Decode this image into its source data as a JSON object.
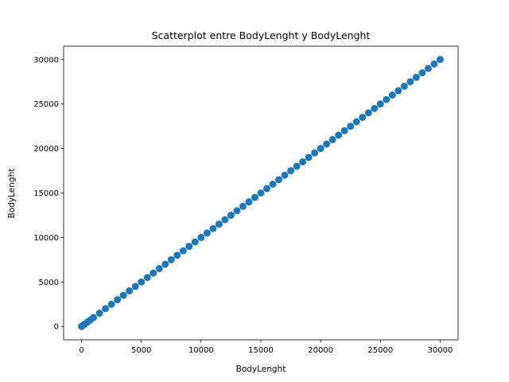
{
  "chart_data": {
    "type": "scatter",
    "title": "Scatterplot entre BodyLenght y BodyLenght",
    "xlabel": "BodyLenght",
    "ylabel": "BodyLenght",
    "xlim": [
      -1500,
      31500
    ],
    "ylim": [
      -1500,
      31500
    ],
    "xticks": [
      0,
      5000,
      10000,
      15000,
      20000,
      25000,
      30000
    ],
    "yticks": [
      0,
      5000,
      10000,
      15000,
      20000,
      25000,
      30000
    ],
    "xtick_labels": [
      "0",
      "5000",
      "10000",
      "15000",
      "20000",
      "25000",
      "30000"
    ],
    "ytick_labels": [
      "0",
      "5000",
      "10000",
      "15000",
      "20000",
      "25000",
      "30000"
    ],
    "grid": false,
    "marker_color": "#1f77b4",
    "series": [
      {
        "x": [
          0,
          100,
          250,
          500,
          750,
          1000,
          1500,
          2000,
          2500,
          3000,
          3500,
          4000,
          4500,
          5000,
          5500,
          6000,
          6500,
          7000,
          7500,
          8000,
          8500,
          9000,
          9500,
          10000,
          10500,
          11000,
          11500,
          12000,
          12500,
          13000,
          13500,
          14000,
          14500,
          15000,
          15500,
          16000,
          16500,
          17000,
          17500,
          18000,
          18500,
          19000,
          19500,
          20000,
          20500,
          21000,
          21500,
          22000,
          22500,
          23000,
          23500,
          24000,
          24500,
          25000,
          25500,
          26000,
          26500,
          27000,
          27500,
          28000,
          28500,
          29000,
          29500,
          30000
        ],
        "y": [
          0,
          100,
          250,
          500,
          750,
          1000,
          1500,
          2000,
          2500,
          3000,
          3500,
          4000,
          4500,
          5000,
          5500,
          6000,
          6500,
          7000,
          7500,
          8000,
          8500,
          9000,
          9500,
          10000,
          10500,
          11000,
          11500,
          12000,
          12500,
          13000,
          13500,
          14000,
          14500,
          15000,
          15500,
          16000,
          16500,
          17000,
          17500,
          18000,
          18500,
          19000,
          19500,
          20000,
          20500,
          21000,
          21500,
          22000,
          22500,
          23000,
          23500,
          24000,
          24500,
          25000,
          25500,
          26000,
          26500,
          27000,
          27500,
          28000,
          28500,
          29000,
          29500,
          30000
        ]
      }
    ]
  }
}
